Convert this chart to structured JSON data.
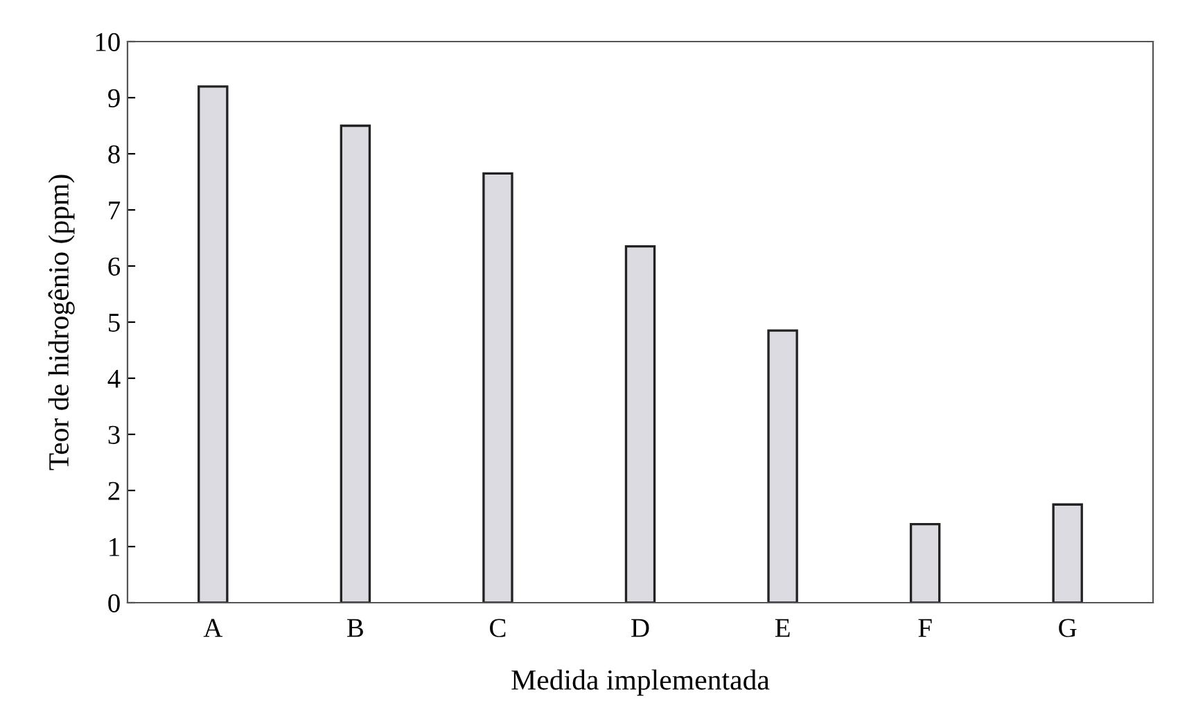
{
  "chart_data": {
    "type": "bar",
    "xlabel": "Medida implementada",
    "ylabel": "Teor de hidrogênio (ppm)",
    "categories": [
      "A",
      "B",
      "C",
      "D",
      "E",
      "F",
      "G"
    ],
    "values": [
      9.2,
      8.5,
      7.65,
      6.35,
      4.85,
      1.4,
      1.75
    ],
    "color": "#dcdbe2",
    "ylim": [
      0,
      10
    ],
    "yticks": [
      0,
      1,
      2,
      3,
      4,
      5,
      6,
      7,
      8,
      9,
      10
    ],
    "grid": false,
    "legend": false
  }
}
